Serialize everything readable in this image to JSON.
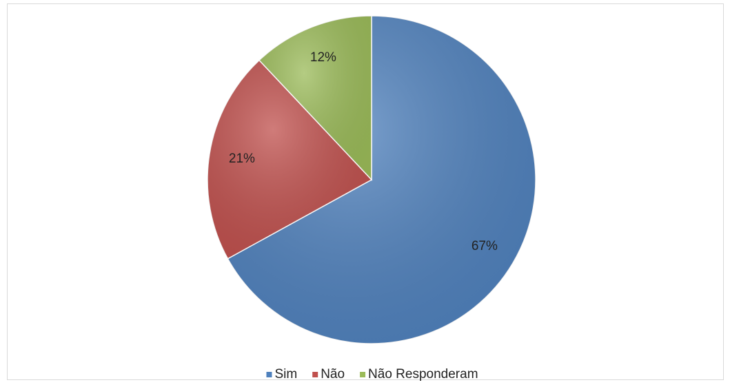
{
  "chart_data": {
    "type": "pie",
    "categories": [
      "Sim",
      "Não",
      "Não Responderam"
    ],
    "values": [
      67,
      21,
      12
    ],
    "value_labels": [
      "67%",
      "21%",
      "12%"
    ],
    "colors": [
      "#4f81bd",
      "#c0504d",
      "#9bbb59"
    ],
    "legend": "bottom"
  }
}
